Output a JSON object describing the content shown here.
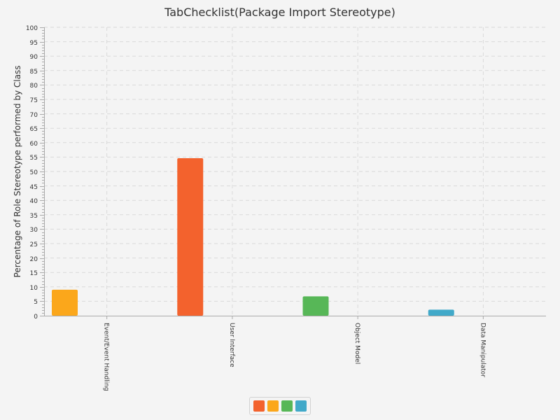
{
  "chart_data": {
    "type": "bar",
    "title": "TabChecklist(Package Import Stereotype)",
    "xlabel": "",
    "ylabel": "Percentage of Role Stereotype performed by Class",
    "ylim": [
      0,
      100
    ],
    "y_major_step": 5,
    "y_minor_step": 1,
    "grid": true,
    "legend": "bottom-center",
    "categories": [
      "Event/Event Handling",
      "User Interface",
      "Object Model",
      "Data Manipulator"
    ],
    "series": [
      {
        "color": "#f3622d",
        "values": [
          0,
          54.6,
          0,
          0
        ]
      },
      {
        "color": "#fba71b",
        "values": [
          9,
          0,
          0,
          0
        ]
      },
      {
        "color": "#57b757",
        "values": [
          0,
          0,
          6.7,
          0
        ]
      },
      {
        "color": "#41a9c9",
        "values": [
          0,
          0,
          0,
          2.1
        ]
      }
    ]
  }
}
